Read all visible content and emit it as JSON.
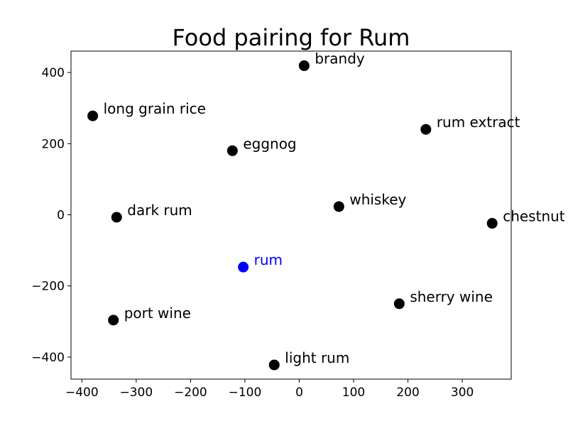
{
  "chart_data": {
    "type": "scatter",
    "title": "Food pairing for Rum",
    "xlabel": "",
    "ylabel": "",
    "xlim": [
      -420,
      390
    ],
    "ylim": [
      -462,
      460
    ],
    "xticks": [
      -400,
      -300,
      -200,
      -100,
      0,
      100,
      200,
      300
    ],
    "yticks": [
      -400,
      -200,
      0,
      200,
      400
    ],
    "xtick_labels": [
      "−400",
      "−300",
      "−200",
      "−100",
      "0",
      "100",
      "200",
      "300"
    ],
    "ytick_labels": [
      "−400",
      "−200",
      "0",
      "200",
      "400"
    ],
    "grid": false,
    "colors": {
      "default": "#000000",
      "highlight": "#0000ff"
    },
    "points": [
      {
        "label": "brandy",
        "x": 9,
        "y": 419,
        "highlight": false
      },
      {
        "label": "long grain rice",
        "x": -380,
        "y": 278,
        "highlight": false
      },
      {
        "label": "rum extract",
        "x": 233,
        "y": 240,
        "highlight": false
      },
      {
        "label": "eggnog",
        "x": -123,
        "y": 180,
        "highlight": false
      },
      {
        "label": "whiskey",
        "x": 73,
        "y": 23,
        "highlight": false
      },
      {
        "label": "dark rum",
        "x": -336,
        "y": -7,
        "highlight": false
      },
      {
        "label": "chestnut",
        "x": 355,
        "y": -24,
        "highlight": false
      },
      {
        "label": "rum",
        "x": -103,
        "y": -147,
        "highlight": true
      },
      {
        "label": "sherry wine",
        "x": 184,
        "y": -250,
        "highlight": false
      },
      {
        "label": "port wine",
        "x": -342,
        "y": -296,
        "highlight": false
      },
      {
        "label": "light rum",
        "x": -46,
        "y": -422,
        "highlight": false
      }
    ]
  }
}
